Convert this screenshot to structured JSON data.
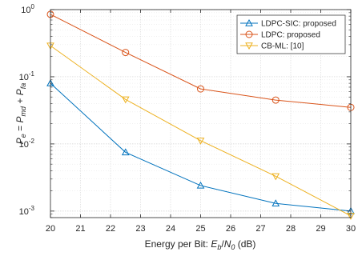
{
  "chart_data": {
    "type": "line",
    "title": "",
    "xlabel": {
      "prefix": "Energy per Bit: ",
      "var_main": "E",
      "var_sub": "b",
      "slash": "/",
      "var2_main": "N",
      "var2_sub": "0",
      "suffix": " (dB)"
    },
    "ylabel": {
      "p1": "P",
      "p1_sub": "e",
      "eq": " = ",
      "p2": "P",
      "p2_sub": "md",
      "plus": " + ",
      "p3": "P",
      "p3_sub": "fa"
    },
    "xlim": [
      20,
      30
    ],
    "ylim": [
      0.0008,
      1
    ],
    "yscale": "log",
    "grid": true,
    "minor_grid": true,
    "legend_position": "top-right",
    "x_ticks": [
      "20",
      "21",
      "22",
      "23",
      "24",
      "25",
      "26",
      "27",
      "28",
      "29",
      "30"
    ],
    "y_ticks": [
      {
        "base": "10",
        "exp": "0",
        "value": 1
      },
      {
        "base": "10",
        "exp": "-1",
        "value": 0.1
      },
      {
        "base": "10",
        "exp": "-2",
        "value": 0.01
      },
      {
        "base": "10",
        "exp": "-3",
        "value": 0.001
      }
    ],
    "series": [
      {
        "name": "LDPC-SIC: proposed",
        "color": "#0072bd",
        "marker": "triangle-up",
        "x": [
          20,
          22.5,
          25,
          27.5,
          30
        ],
        "y": [
          0.08,
          0.0075,
          0.0024,
          0.0013,
          0.001
        ]
      },
      {
        "name": "LDPC: proposed",
        "color": "#d95319",
        "marker": "circle",
        "x": [
          20,
          22.5,
          25,
          27.5,
          30
        ],
        "y": [
          0.85,
          0.23,
          0.066,
          0.045,
          0.035
        ]
      },
      {
        "name": "CB-ML: [10]",
        "color": "#edb120",
        "marker": "triangle-down",
        "x": [
          20,
          22.5,
          25,
          27.5,
          30
        ],
        "y": [
          0.29,
          0.046,
          0.0112,
          0.0033,
          0.00085
        ]
      }
    ]
  }
}
